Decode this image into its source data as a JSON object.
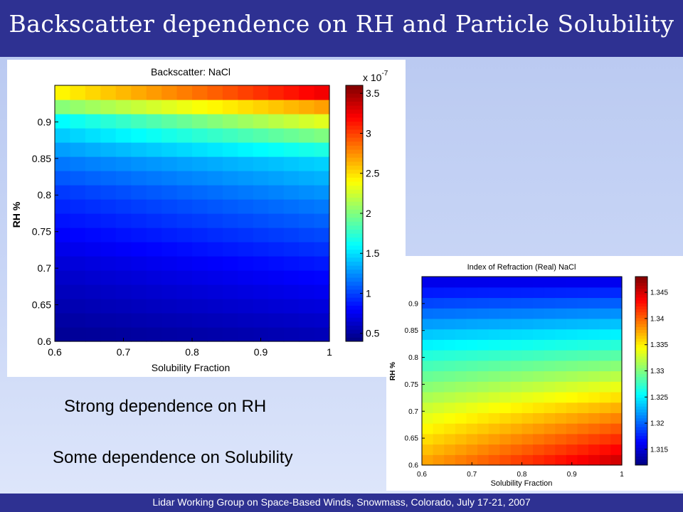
{
  "slide": {
    "title": "Backscatter dependence on RH and Particle Solubility",
    "footer": "Lidar Working Group on Space-Based Winds, Snowmass, Colorado, July 17-21, 2007",
    "statement_rh": "Strong dependence on RH",
    "statement_solubility": "Some dependence on Solubility",
    "colors": {
      "bar": "#2e3192",
      "background": "#c5d3f5"
    }
  },
  "chart_data": [
    {
      "type": "heatmap",
      "title": "Backscatter: NaCl",
      "xlabel": "Solubility Fraction",
      "ylabel": "RH %",
      "xlim": [
        0.6,
        1.0
      ],
      "ylim": [
        0.6,
        0.95
      ],
      "x_ticks": [
        "0.6",
        "0.7",
        "0.8",
        "0.9",
        "1"
      ],
      "y_ticks": [
        "0.6",
        "0.65",
        "0.7",
        "0.75",
        "0.8",
        "0.85",
        "0.9"
      ],
      "colorbar": {
        "exponent_label": "x 10",
        "exponent": "-7",
        "range": [
          0.4,
          3.6
        ],
        "ticks": [
          "0.5",
          "1",
          "1.5",
          "2",
          "2.5",
          "3",
          "3.5"
        ]
      },
      "grid_size": [
        18,
        18
      ],
      "value_model": {
        "rh_breakpoints": [
          0.6,
          0.7,
          0.8,
          0.85,
          0.9,
          0.925,
          0.95
        ],
        "values_at_solubility_0_6": [
          0.45,
          0.65,
          0.95,
          1.2,
          1.55,
          2.1,
          2.6
        ],
        "values_at_solubility_1_0": [
          0.55,
          0.85,
          1.25,
          1.5,
          2.3,
          2.8,
          3.55
        ]
      },
      "colormap": "jet"
    },
    {
      "type": "heatmap",
      "title": "Index of Refraction (Real) NaCl",
      "xlabel": "Solubility Fraction",
      "ylabel": "RH %",
      "xlim": [
        0.6,
        1.0
      ],
      "ylim": [
        0.6,
        0.95
      ],
      "x_ticks": [
        "0.6",
        "0.7",
        "0.8",
        "0.9",
        "1"
      ],
      "y_ticks": [
        "0.6",
        "0.65",
        "0.7",
        "0.75",
        "0.8",
        "0.85",
        "0.9"
      ],
      "colorbar": {
        "range": [
          1.312,
          1.348
        ],
        "ticks": [
          "1.315",
          "1.32",
          "1.325",
          "1.33",
          "1.335",
          "1.34",
          "1.345"
        ]
      },
      "grid_size": [
        18,
        18
      ],
      "value_model": {
        "rh_breakpoints": [
          0.6,
          0.7,
          0.8,
          0.9,
          0.95
        ],
        "values_at_solubility_0_6": [
          1.338,
          1.333,
          1.327,
          1.319,
          1.315
        ],
        "values_at_solubility_1_0": [
          1.346,
          1.338,
          1.329,
          1.32,
          1.315
        ]
      },
      "colormap": "jet"
    }
  ]
}
